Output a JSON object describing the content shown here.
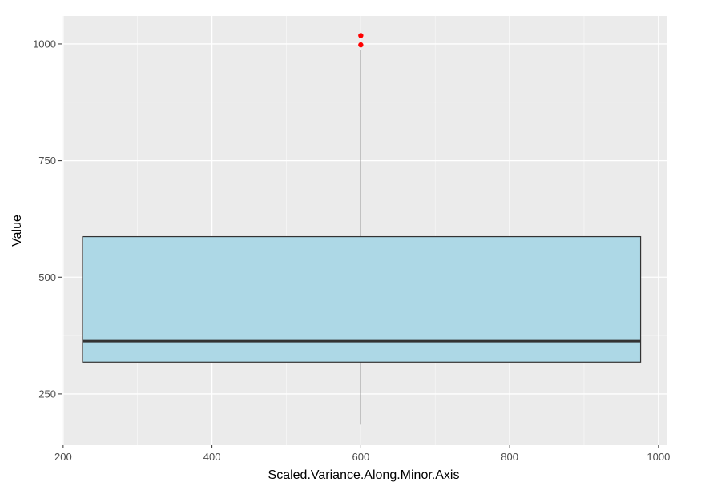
{
  "chart_data": {
    "type": "boxplot",
    "xlabel": "Scaled.Variance.Along.Minor.Axis",
    "ylabel": "Value",
    "xlim": [
      198,
      1012
    ],
    "ylim": [
      140,
      1060
    ],
    "x_ticks": [
      200,
      400,
      600,
      800,
      1000
    ],
    "x_tick_labels": [
      "200",
      "400",
      "600",
      "800",
      "1000"
    ],
    "y_ticks": [
      250,
      500,
      750,
      1000
    ],
    "y_tick_labels": [
      "250",
      "500",
      "750",
      "1000"
    ],
    "grid": true,
    "box": {
      "x_center": 600,
      "x_range": [
        226,
        976
      ],
      "q1": 318,
      "median": 363,
      "q3": 587,
      "whisker_low": 184,
      "whisker_high": 987,
      "outliers": [
        998,
        1018
      ]
    },
    "colors": {
      "panel_background": "#ebebeb",
      "grid_major": "#ffffff",
      "box_fill": "#add8e6",
      "box_stroke": "#333333",
      "median_line": "#333333",
      "outlier": "#ff0000"
    }
  }
}
